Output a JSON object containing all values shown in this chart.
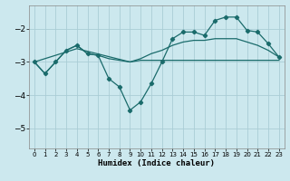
{
  "title": "",
  "xlabel": "Humidex (Indice chaleur)",
  "bg_color": "#cce8ee",
  "grid_color": "#aacdd6",
  "line_color": "#1a6b6b",
  "xlim": [
    -0.5,
    23.5
  ],
  "ylim": [
    -5.6,
    -1.3
  ],
  "yticks": [
    -5,
    -4,
    -3,
    -2
  ],
  "xticks": [
    0,
    1,
    2,
    3,
    4,
    5,
    6,
    7,
    8,
    9,
    10,
    11,
    12,
    13,
    14,
    15,
    16,
    17,
    18,
    19,
    20,
    21,
    22,
    23
  ],
  "series_main_x": [
    0,
    1,
    2,
    3,
    4,
    5,
    6,
    7,
    8,
    9,
    10,
    11,
    12,
    13,
    14,
    15,
    16,
    17,
    18,
    19,
    20,
    21,
    22,
    23
  ],
  "series_main_y": [
    -3.0,
    -3.35,
    -3.0,
    -2.65,
    -2.5,
    -2.75,
    -2.8,
    -3.5,
    -3.75,
    -4.45,
    -4.2,
    -3.65,
    -3.0,
    -2.3,
    -2.1,
    -2.1,
    -2.2,
    -1.75,
    -1.65,
    -1.65,
    -2.05,
    -2.1,
    -2.45,
    -2.85
  ],
  "series_smooth_x": [
    0,
    1,
    2,
    3,
    4,
    5,
    6,
    7,
    8,
    9,
    10,
    11,
    12,
    13,
    14,
    15,
    16,
    17,
    18,
    19,
    20,
    21,
    22,
    23
  ],
  "series_smooth_y": [
    -3.0,
    -3.35,
    -3.0,
    -2.65,
    -2.5,
    -2.75,
    -2.8,
    -2.9,
    -2.95,
    -3.0,
    -2.9,
    -2.75,
    -2.65,
    -2.5,
    -2.4,
    -2.35,
    -2.35,
    -2.3,
    -2.3,
    -2.3,
    -2.4,
    -2.5,
    -2.65,
    -2.85
  ],
  "series_flat_x": [
    0,
    4,
    9,
    10,
    11,
    12,
    13,
    14,
    15,
    16,
    17,
    18,
    19,
    20,
    21,
    22,
    23
  ],
  "series_flat_y": [
    -3.0,
    -2.6,
    -3.0,
    -2.95,
    -2.95,
    -2.95,
    -2.95,
    -2.95,
    -2.95,
    -2.95,
    -2.95,
    -2.95,
    -2.95,
    -2.95,
    -2.95,
    -2.95,
    -2.95
  ]
}
